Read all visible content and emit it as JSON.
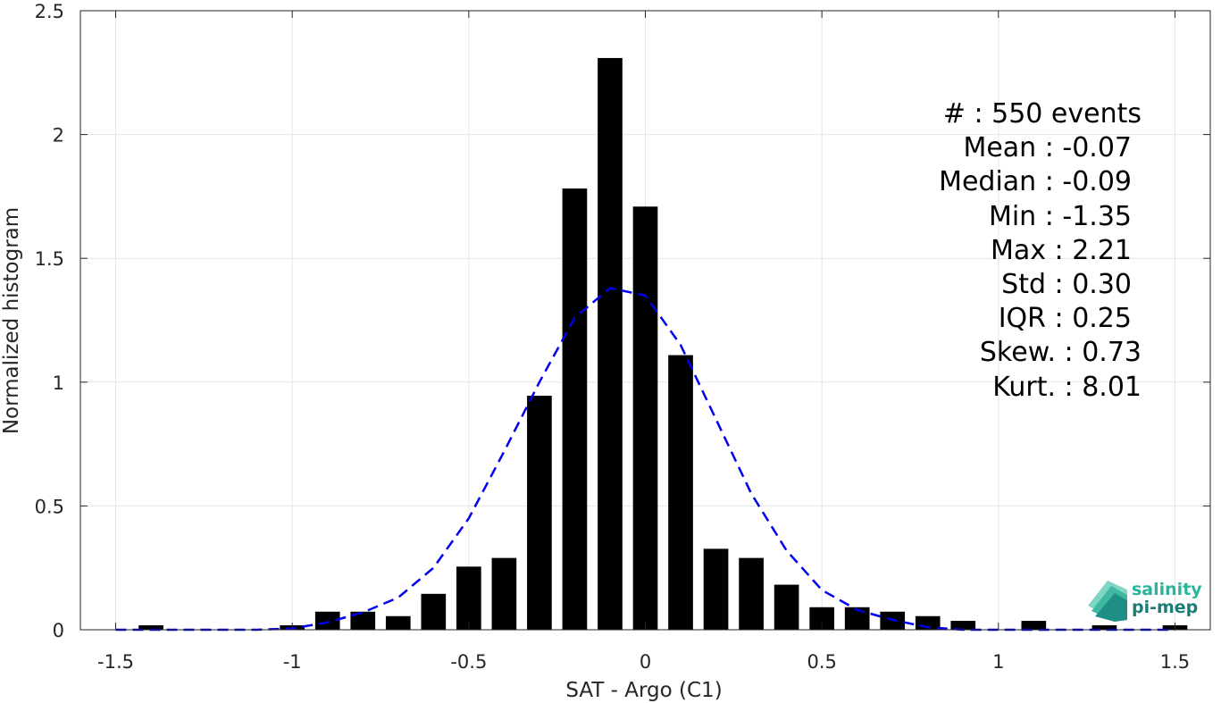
{
  "chart_data": {
    "type": "bar",
    "xlabel": "SAT - Argo (C1)",
    "ylabel": "Normalized histogram",
    "xlim": [
      -1.6,
      1.6
    ],
    "ylim": [
      0,
      2.5
    ],
    "xticks": [
      -1.5,
      -1,
      -0.5,
      0,
      0.5,
      1,
      1.5
    ],
    "xtick_labels": [
      "-1.5",
      "-1",
      "-0.5",
      "0",
      "0.5",
      "1",
      "1.5"
    ],
    "yticks": [
      0,
      0.5,
      1,
      1.5,
      2,
      2.5
    ],
    "ytick_labels": [
      "0",
      "0.5",
      "1",
      "1.5",
      "2",
      "2.5"
    ],
    "grid": true,
    "bar_width": 0.07,
    "bar_color": "#000000",
    "x": [
      -1.4,
      -1.3,
      -1.2,
      -1.1,
      -1.0,
      -0.9,
      -0.8,
      -0.7,
      -0.6,
      -0.5,
      -0.4,
      -0.3,
      -0.2,
      -0.1,
      0.0,
      0.1,
      0.2,
      0.3,
      0.4,
      0.5,
      0.6,
      0.7,
      0.8,
      0.9,
      1.0,
      1.1,
      1.2,
      1.3,
      1.4,
      1.5
    ],
    "values": [
      0.018,
      0,
      0,
      0,
      0.018,
      0.073,
      0.073,
      0.055,
      0.145,
      0.255,
      0.29,
      0.945,
      1.782,
      2.309,
      1.709,
      1.109,
      0.327,
      0.29,
      0.182,
      0.091,
      0.091,
      0.073,
      0.055,
      0.036,
      0,
      0.036,
      0,
      0.018,
      0,
      0.018
    ],
    "fit_curve": {
      "color": "#0000ee",
      "style": "dashed",
      "x": [
        -1.5,
        -1.4,
        -1.3,
        -1.2,
        -1.1,
        -1.0,
        -0.9,
        -0.8,
        -0.7,
        -0.6,
        -0.5,
        -0.4,
        -0.3,
        -0.2,
        -0.1,
        0.0,
        0.1,
        0.2,
        0.3,
        0.4,
        0.5,
        0.6,
        0.7,
        0.8,
        0.9,
        1.0,
        1.1,
        1.2,
        1.3,
        1.4,
        1.5
      ],
      "y": [
        0,
        0,
        0,
        0,
        0,
        0.005,
        0.03,
        0.07,
        0.13,
        0.25,
        0.45,
        0.72,
        1.0,
        1.26,
        1.38,
        1.35,
        1.15,
        0.85,
        0.55,
        0.32,
        0.16,
        0.08,
        0.04,
        0.01,
        0,
        0,
        0,
        0,
        0,
        0,
        0
      ]
    },
    "stats": [
      {
        "label": "#  : 550 events"
      },
      {
        "label": "Mean : -0.07"
      },
      {
        "label": "Median : -0.09"
      },
      {
        "label": "Min : -1.35"
      },
      {
        "label": "Max : 2.21"
      },
      {
        "label": "Std : 0.30"
      },
      {
        "label": "IQR : 0.25"
      },
      {
        "label": "Skew. : 0.73"
      },
      {
        "label": "Kurt. : 8.01"
      }
    ]
  },
  "logo": {
    "line1": "salinity",
    "line2": "pi-mep",
    "color1": "#2bb39b",
    "color2": "#1a7d77"
  }
}
